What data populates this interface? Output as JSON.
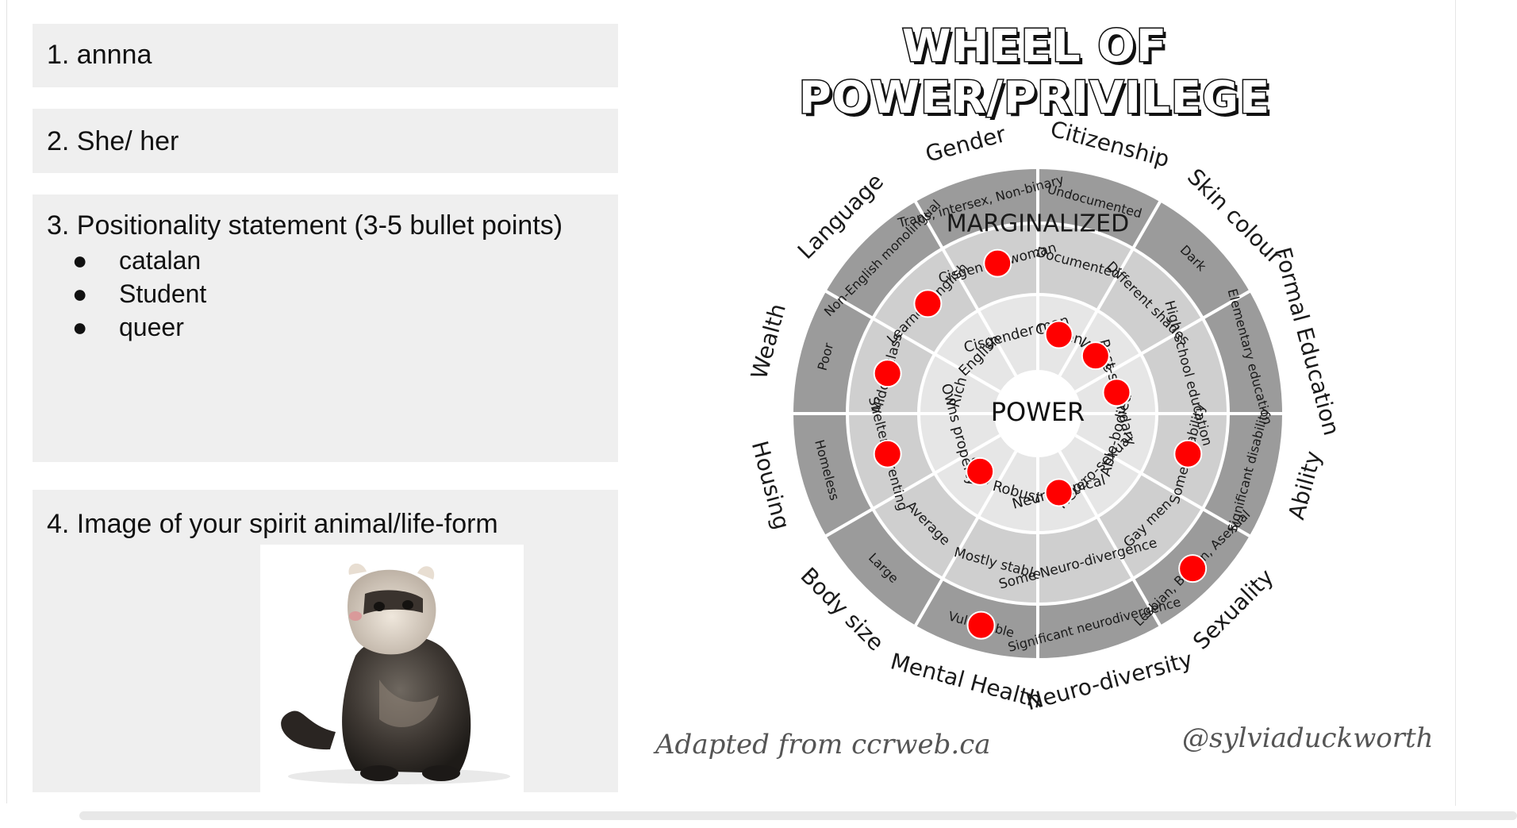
{
  "cards": {
    "name": "1. annna",
    "pronouns": "2. She/ her",
    "positionality": {
      "heading": "3. Positionality statement (3-5 bullet points)",
      "bullet_glyph": "●",
      "bullets": [
        "catalan",
        "Student",
        "queer"
      ]
    },
    "spirit": {
      "heading": "4. Image of your spirit animal/life-form"
    }
  },
  "wheel": {
    "title": "WHEEL OF POWER/PRIVILEGE",
    "center": "POWER",
    "ring_label": "MARGINALIZED",
    "categories": [
      "Citizenship",
      "Skin colour",
      "Formal Education",
      "Ability",
      "Sexuality",
      "Neuro-diversity",
      "Mental Health",
      "Body size",
      "Housing",
      "Wealth",
      "Language",
      "Gender"
    ],
    "outer_tier": [
      "Undocumented",
      "Dark",
      "Elementary education",
      "Significant disability",
      "Lesbian, Bi, Pan, Asexual",
      "Significant neurodivergence",
      "Vulnerable",
      "Large",
      "Homeless",
      "Poor",
      "Non-English monolingual",
      "Trans, intersex, Non-binary"
    ],
    "middle_tier": [
      "Documented",
      "Different shades",
      "High school education",
      "Some disability",
      "Gay men",
      "Some Neuro-divergence",
      "Mostly stable",
      "Average",
      "Sheltered renting",
      "Middle class",
      "Learned English",
      "Cisgender woman"
    ],
    "inner_tier": [
      "Citizen",
      "White",
      "Post-secondary",
      "Able-bodied",
      "Hetero-sexual",
      "Neuro-typical",
      "Robust",
      "Slim",
      "Owns property",
      "Rich",
      "English",
      "Cisgender man"
    ],
    "credit_left": "Adapted from ccrweb.ca",
    "credit_right": "@sylviaduckworth",
    "colors": {
      "marker": "#ff0000",
      "outer": "#9b9b9b",
      "middle": "#cfcfcf",
      "inner": "#e6e6e6",
      "line": "#ffffff"
    }
  }
}
